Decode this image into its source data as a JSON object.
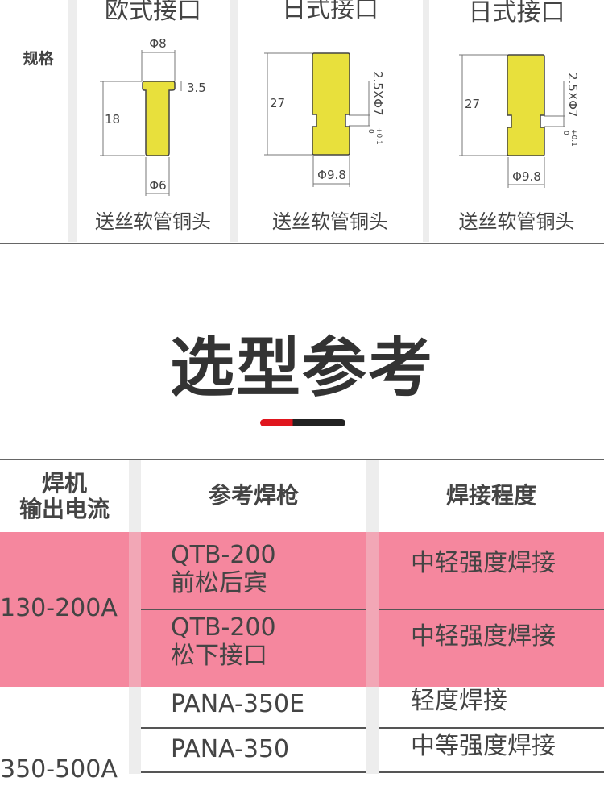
{
  "spec": {
    "row_label": "规格",
    "panels": [
      {
        "title": "欧式接口",
        "caption": "送丝软管铜头",
        "dims": {
          "top_dia": "Φ8",
          "head_len": "3.5",
          "length": "18",
          "bottom_dia": "Φ6"
        }
      },
      {
        "title": "日式接口",
        "caption": "送丝软管铜头",
        "dims": {
          "length": "27",
          "groove": "2.5XΦ7",
          "tol_upper": "+0.1",
          "tol_lower": "0",
          "dia": "Φ9.8"
        }
      },
      {
        "title": "日式接口",
        "caption": "送丝软管铜头",
        "dims": {
          "length": "27",
          "groove": "2.5XΦ7",
          "tol_upper": "+0.1",
          "tol_lower": "0",
          "dia": "Φ9.8"
        }
      }
    ],
    "part_color": "#e8e03c"
  },
  "section_title": "选型参考",
  "accent": {
    "red": "#e0161e",
    "black": "#222222",
    "pink": "#f5879e"
  },
  "table": {
    "headers": [
      "焊机\n输出电流",
      "参考焊枪",
      "焊接程度"
    ],
    "header_lines": [
      "焊机",
      "输出电流"
    ],
    "groups": [
      {
        "current": "130-200A",
        "rows": [
          {
            "gun": "QTB-200",
            "gun_sub": "前松后宾",
            "level": "中轻强度焊接"
          },
          {
            "gun": "QTB-200",
            "gun_sub": "松下接口",
            "level": "中轻强度焊接"
          }
        ]
      },
      {
        "current": "350-500A",
        "rows": [
          {
            "gun": "PANA-350E",
            "level": "轻度焊接"
          },
          {
            "gun": "PANA-350",
            "level": "中等强度焊接"
          }
        ]
      }
    ]
  }
}
